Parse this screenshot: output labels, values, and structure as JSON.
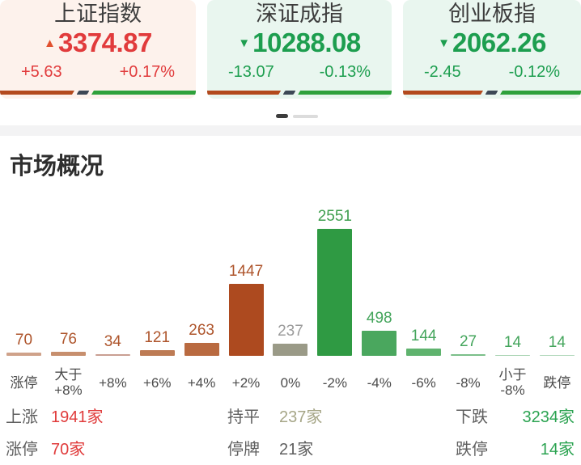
{
  "index_cards": [
    {
      "name": "上证指数",
      "value": "3374.87",
      "direction": "up",
      "arrow_icon": "up-triangle-icon",
      "change": "+5.63",
      "change_pct": "+0.17%",
      "text_color": "#e13b3c",
      "arrow_color": "#e1512f",
      "bg_color": "#fdf2ec",
      "ratio_red_pct": "38%"
    },
    {
      "name": "深证成指",
      "value": "10288.08",
      "direction": "down",
      "arrow_icon": "down-triangle-icon",
      "change": "-13.07",
      "change_pct": "-0.13%",
      "text_color": "#1d9e4f",
      "arrow_color": "#1d9e4f",
      "bg_color": "#e9f6ef",
      "ratio_red_pct": "40%"
    },
    {
      "name": "创业板指",
      "value": "2062.26",
      "direction": "down",
      "arrow_icon": "down-triangle-icon",
      "change": "-2.45",
      "change_pct": "-0.12%",
      "text_color": "#1d9e4f",
      "arrow_color": "#1d9e4f",
      "bg_color": "#e9f6ef",
      "ratio_red_pct": "45%"
    }
  ],
  "ratio_bar_colors": {
    "red": "#b34a1e",
    "slash": "#3d4856",
    "green": "#2fa13c"
  },
  "pagination": {
    "total_pages": 2,
    "active_page": 1
  },
  "section": {
    "title": "市场概况"
  },
  "chart_data": {
    "type": "bar",
    "title": "市场概况",
    "categories": [
      "涨停",
      "大于\n+8%",
      "+8%",
      "+6%",
      "+4%",
      "+2%",
      "0%",
      "-2%",
      "-4%",
      "-6%",
      "-8%",
      "小于\n-8%",
      "跌停"
    ],
    "values": [
      70,
      76,
      34,
      121,
      263,
      1447,
      237,
      2551,
      498,
      144,
      27,
      14,
      14
    ],
    "bar_colors": [
      "#cfa28a",
      "#c78f6e",
      "#c99f92",
      "#bd7b54",
      "#b96a40",
      "#ad4a1f",
      "#9a9a87",
      "#2f9a43",
      "#4aa75e",
      "#5fb36e",
      "#7bbf8a",
      "#a9d4b3",
      "#b2d8bc"
    ],
    "value_label_colors": [
      "#ae552c",
      "#ae552c",
      "#ae552c",
      "#ae552c",
      "#ae552c",
      "#ae552c",
      "#9b9b9b",
      "#3f9e4e",
      "#44a55c",
      "#44a55c",
      "#44a55c",
      "#44a55c",
      "#44a55c"
    ],
    "xlabel": "",
    "ylabel": "",
    "ylim": [
      0,
      2551
    ],
    "grid": false,
    "legend": false
  },
  "stats": {
    "rows": [
      [
        {
          "label": "上涨",
          "value": "1941家",
          "value_color": "#e03b3b"
        },
        {
          "label": "持平",
          "value": "237家",
          "value_color": "#a6a687"
        },
        {
          "label": "下跌",
          "value": "3234家",
          "value_color": "#2ba351"
        }
      ],
      [
        {
          "label": "涨停",
          "value": "70家",
          "value_color": "#e03b3b"
        },
        {
          "label": "停牌",
          "value": "21家",
          "value_color": "#5f5f5f"
        },
        {
          "label": "跌停",
          "value": "14家",
          "value_color": "#2ba351"
        }
      ]
    ]
  }
}
